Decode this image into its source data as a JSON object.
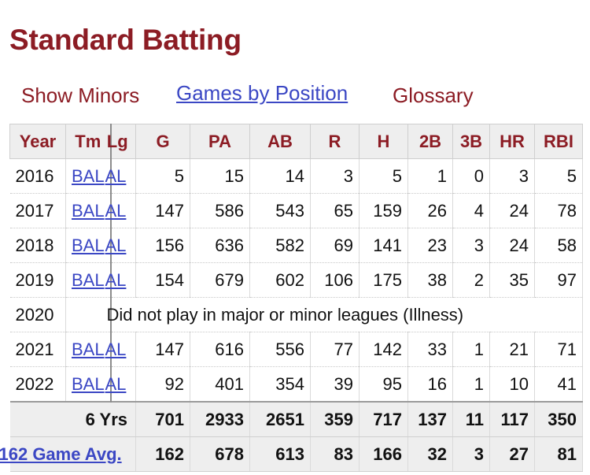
{
  "section": {
    "title": "Standard Batting",
    "tabs": [
      {
        "label": "Show Minors"
      },
      {
        "label": "Games by Position"
      },
      {
        "label": "Glossary"
      }
    ]
  },
  "table": {
    "headers": {
      "year": "Year",
      "tm": "Tm",
      "lg": "Lg",
      "g": "G",
      "pa": "PA",
      "ab": "AB",
      "r": "R",
      "h": "H",
      "2b": "2B",
      "3b": "3B",
      "hr": "HR",
      "rbi": "RBI"
    },
    "rows": [
      {
        "year": "2016",
        "tm": "BAL",
        "lg": "AL",
        "g": "5",
        "pa": "15",
        "ab": "14",
        "r": "3",
        "h": "5",
        "2b": "1",
        "3b": "0",
        "hr": "3",
        "rbi": "5"
      },
      {
        "year": "2017",
        "tm": "BAL",
        "lg": "AL",
        "g": "147",
        "pa": "586",
        "ab": "543",
        "r": "65",
        "h": "159",
        "2b": "26",
        "3b": "4",
        "hr": "24",
        "rbi": "78"
      },
      {
        "year": "2018",
        "tm": "BAL",
        "lg": "AL",
        "g": "156",
        "pa": "636",
        "ab": "582",
        "r": "69",
        "h": "141",
        "2b": "23",
        "3b": "3",
        "hr": "24",
        "rbi": "58"
      },
      {
        "year": "2019",
        "tm": "BAL",
        "lg": "AL",
        "g": "154",
        "pa": "679",
        "ab": "602",
        "r": "106",
        "h": "175",
        "2b": "38",
        "3b": "2",
        "hr": "35",
        "rbi": "97"
      },
      {
        "year": "2021",
        "tm": "BAL",
        "lg": "AL",
        "g": "147",
        "pa": "616",
        "ab": "556",
        "r": "77",
        "h": "142",
        "2b": "33",
        "3b": "1",
        "hr": "21",
        "rbi": "71"
      },
      {
        "year": "2022",
        "tm": "BAL",
        "lg": "AL",
        "g": "92",
        "pa": "401",
        "ab": "354",
        "r": "39",
        "h": "95",
        "2b": "16",
        "3b": "1",
        "hr": "10",
        "rbi": "41"
      }
    ],
    "note_row": {
      "year": "2020",
      "text": "Did not play in major or minor leagues (Illness)"
    },
    "totals": {
      "label": "6 Yrs",
      "g": "701",
      "pa": "2933",
      "ab": "2651",
      "r": "359",
      "h": "717",
      "2b": "137",
      "3b": "11",
      "hr": "117",
      "rbi": "350"
    },
    "avg": {
      "label": "162 Game Avg.",
      "g": "162",
      "pa": "678",
      "ab": "613",
      "r": "83",
      "h": "166",
      "2b": "32",
      "3b": "3",
      "hr": "27",
      "rbi": "81"
    }
  },
  "colors": {
    "accent": "#8c1c24",
    "link": "#3b47c4",
    "header_bg": "#eeeeee"
  }
}
